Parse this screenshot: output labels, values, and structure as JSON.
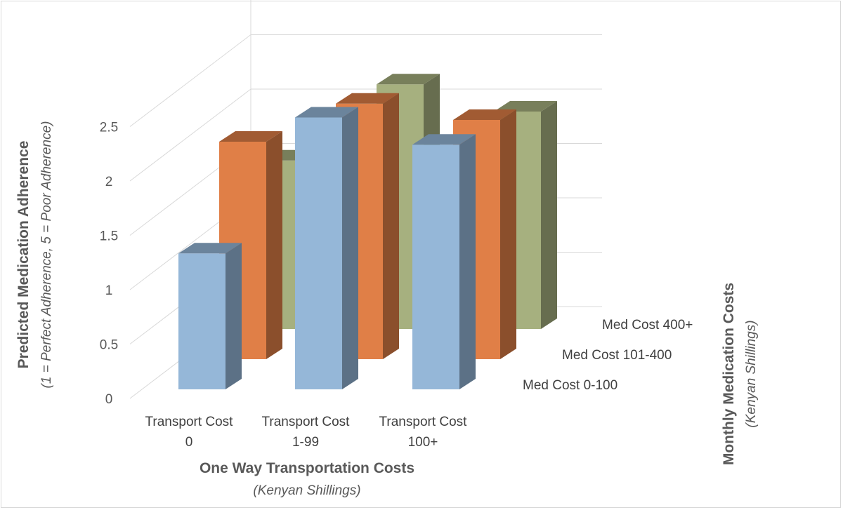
{
  "chart_data": {
    "type": "bar",
    "subtype": "3d-column",
    "categories": [
      "Transport Cost 0",
      "Transport Cost 1-99",
      "Transport Cost 100+"
    ],
    "category_lines": [
      [
        "Transport Cost",
        "0"
      ],
      [
        "Transport Cost",
        "1-99"
      ],
      [
        "Transport Cost",
        "100+"
      ]
    ],
    "series": [
      {
        "name": "Med Cost 0-100",
        "values": [
          1.25,
          2.5,
          2.25
        ],
        "color": "#95B7D8"
      },
      {
        "name": "Med Cost 101-400",
        "values": [
          2.0,
          2.35,
          2.2
        ],
        "color": "#E07F47"
      },
      {
        "name": "Med Cost 400+",
        "values": [
          1.55,
          2.25,
          2.0
        ],
        "color": "#A6B07F"
      }
    ],
    "yticks": [
      "0",
      "0.5",
      "1",
      "1.5",
      "2",
      "2.5"
    ],
    "ylim": [
      0,
      3
    ],
    "xlabel": "One Way Transportation Costs",
    "xlabel_sub": "(Kenyan Shillings)",
    "ylabel": "Predicted Medication Adherence",
    "ylabel_sub": "(1 = Perfect Adherence, 5 = Poor Adherence)",
    "zlabel": "Monthly Medication Costs",
    "zlabel_sub": "(Kenyan Shillings)",
    "grid": true,
    "legend": "none"
  }
}
